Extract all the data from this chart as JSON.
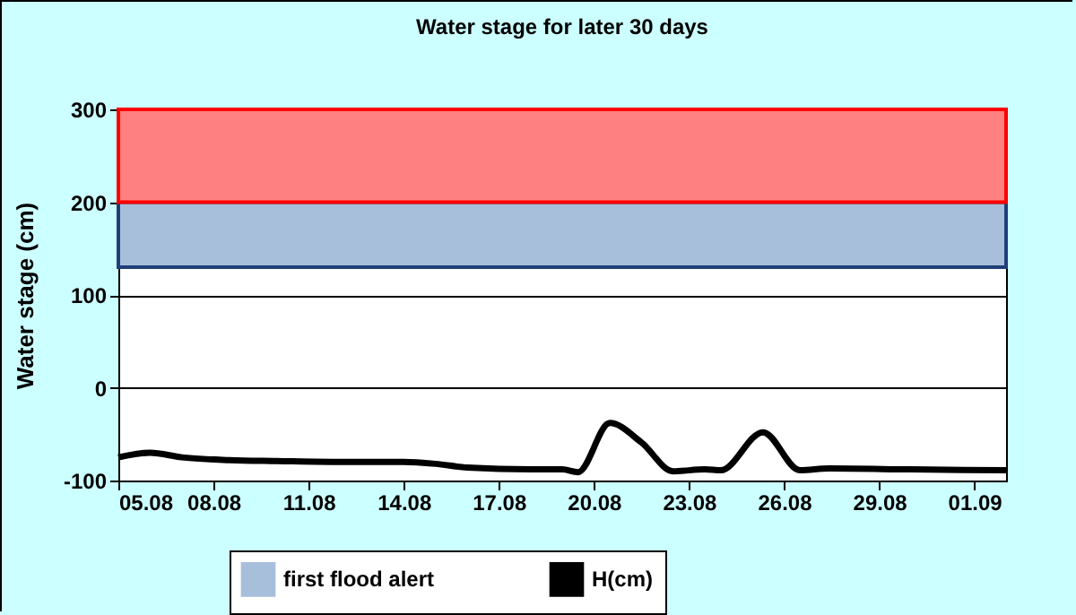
{
  "chart_data": {
    "type": "line",
    "title": "Water stage for later 30 days",
    "ylabel": "Water stage (cm)",
    "x": [
      "--08-05",
      "--08-06",
      "--08-07",
      "--08-08T12:00",
      "--08-10",
      "--08-12",
      "--08-14",
      "--08-15",
      "--08-16",
      "--08-18",
      "--08-19",
      "--08-19T12:00",
      "--08-20T12:00",
      "--08-21T12:00",
      "--08-22T12:00",
      "--08-23T12:00",
      "--08-24",
      "--08-25T08:00",
      "--08-26T12:00",
      "--08-27T10:00",
      "--08-30",
      "--09-02"
    ],
    "series": [
      {
        "name": "H(cm)",
        "color": "#000000",
        "values": [
          -75,
          -70,
          -75,
          -78,
          -79,
          -80,
          -80,
          -82,
          -86,
          -88,
          -88,
          -91,
          -38,
          -59,
          -90,
          -88,
          -89,
          -48,
          -89,
          -87,
          -88,
          -89
        ]
      }
    ],
    "xlim": [
      "--08-05",
      "--09-02"
    ],
    "xticks": [
      {
        "value": "--08-05",
        "label": "05.08"
      },
      {
        "value": "--08-08",
        "label": "08.08"
      },
      {
        "value": "--08-11",
        "label": "11.08"
      },
      {
        "value": "--08-14",
        "label": "14.08"
      },
      {
        "value": "--08-17",
        "label": "17.08"
      },
      {
        "value": "--08-20",
        "label": "20.08"
      },
      {
        "value": "--08-23",
        "label": "23.08"
      },
      {
        "value": "--08-26",
        "label": "26.08"
      },
      {
        "value": "--08-29",
        "label": "29.08"
      },
      {
        "value": "--09-01",
        "label": "01.09"
      }
    ],
    "ylim": [
      -100,
      300
    ],
    "yticks": [
      -100,
      0,
      100,
      200,
      300
    ],
    "bands": [
      {
        "axis": "y",
        "from": 130,
        "to": 200,
        "label": "first flood alert",
        "color": "#a8bfdc"
      },
      {
        "axis": "y",
        "from": 200,
        "to": 300,
        "color": "#ff8080"
      }
    ],
    "grid": "y",
    "legend": "bottom",
    "marker": "none",
    "line_style": "solid"
  }
}
